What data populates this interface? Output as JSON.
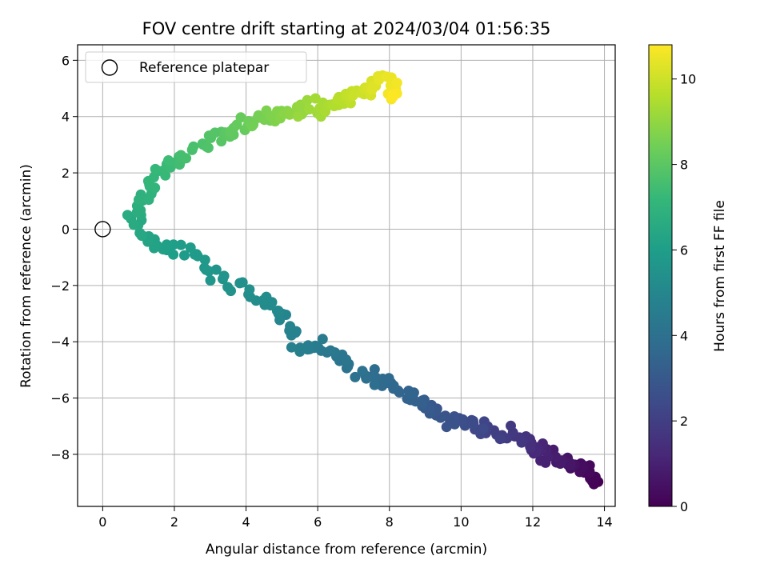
{
  "chart_data": {
    "type": "scatter",
    "title": "FOV centre drift starting at 2024/03/04 01:56:35",
    "xlabel": "Angular distance from reference (arcmin)",
    "ylabel": "Rotation from reference (arcmin)",
    "colorbar_label": "Hours from first FF file",
    "colormap": "viridis",
    "xlim": [
      -0.7,
      14.3
    ],
    "ylim": [
      -9.85,
      6.55
    ],
    "clim": [
      0,
      10.8
    ],
    "x_ticks": [
      0,
      2,
      4,
      6,
      8,
      10,
      12,
      14
    ],
    "y_ticks": [
      -8,
      -6,
      -4,
      -2,
      0,
      2,
      4,
      6
    ],
    "colorbar_ticks": [
      0,
      2,
      4,
      6,
      8,
      10
    ],
    "x_tick_labels": [
      "0",
      "2",
      "4",
      "6",
      "8",
      "10",
      "12",
      "14"
    ],
    "y_tick_labels": [
      "−8",
      "−6",
      "−4",
      "−2",
      "0",
      "2",
      "4",
      "6"
    ],
    "colorbar_tick_labels": [
      "0",
      "2",
      "4",
      "6",
      "8",
      "10"
    ],
    "grid": true,
    "legend": {
      "placement": "top-left",
      "entries": [
        {
          "label": "Reference platepar",
          "marker": "hollow-circle",
          "color": "#000000"
        }
      ]
    },
    "reference_point": {
      "x": 0,
      "y": 0
    },
    "trajectory_keypoints": [
      {
        "x": 13.7,
        "y": -9.1,
        "t": 0.0
      },
      {
        "x": 13.6,
        "y": -8.6,
        "t": 0.2
      },
      {
        "x": 13.1,
        "y": -8.4,
        "t": 0.5
      },
      {
        "x": 12.5,
        "y": -8.1,
        "t": 0.9
      },
      {
        "x": 12.0,
        "y": -7.7,
        "t": 1.3
      },
      {
        "x": 11.6,
        "y": -7.4,
        "t": 1.7
      },
      {
        "x": 10.8,
        "y": -7.1,
        "t": 2.1
      },
      {
        "x": 10.2,
        "y": -6.9,
        "t": 2.5
      },
      {
        "x": 9.3,
        "y": -6.6,
        "t": 2.9
      },
      {
        "x": 8.8,
        "y": -6.0,
        "t": 3.3
      },
      {
        "x": 7.9,
        "y": -5.5,
        "t": 3.7
      },
      {
        "x": 7.2,
        "y": -5.1,
        "t": 4.0
      },
      {
        "x": 6.2,
        "y": -4.2,
        "t": 4.4
      },
      {
        "x": 5.4,
        "y": -4.1,
        "t": 4.7
      },
      {
        "x": 5.0,
        "y": -3.0,
        "t": 5.0
      },
      {
        "x": 4.3,
        "y": -2.3,
        "t": 5.3
      },
      {
        "x": 3.2,
        "y": -1.8,
        "t": 5.6
      },
      {
        "x": 2.4,
        "y": -0.7,
        "t": 5.9
      },
      {
        "x": 1.7,
        "y": -0.8,
        "t": 6.1
      },
      {
        "x": 1.0,
        "y": -0.2,
        "t": 6.4
      },
      {
        "x": 0.8,
        "y": 0.4,
        "t": 6.6
      },
      {
        "x": 1.2,
        "y": 1.1,
        "t": 6.9
      },
      {
        "x": 1.5,
        "y": 2.0,
        "t": 7.2
      },
      {
        "x": 2.2,
        "y": 2.5,
        "t": 7.5
      },
      {
        "x": 3.0,
        "y": 3.2,
        "t": 7.8
      },
      {
        "x": 3.8,
        "y": 3.7,
        "t": 8.2
      },
      {
        "x": 4.6,
        "y": 4.0,
        "t": 8.6
      },
      {
        "x": 5.4,
        "y": 4.2,
        "t": 9.0
      },
      {
        "x": 6.2,
        "y": 4.4,
        "t": 9.4
      },
      {
        "x": 6.9,
        "y": 4.7,
        "t": 9.8
      },
      {
        "x": 7.6,
        "y": 5.1,
        "t": 10.2
      },
      {
        "x": 8.0,
        "y": 5.3,
        "t": 10.5
      },
      {
        "x": 8.1,
        "y": 4.6,
        "t": 10.8
      }
    ],
    "sample_count": 340
  }
}
